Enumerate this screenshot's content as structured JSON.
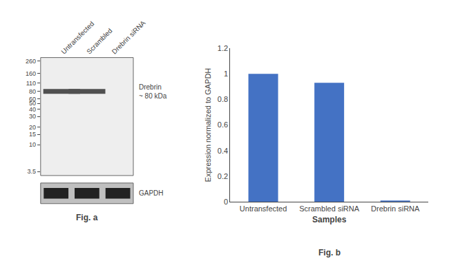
{
  "chart_data": [
    {
      "type": "blot",
      "categories": [
        "Untransfected",
        "Scrambled",
        "Drebrin siRNA"
      ],
      "log": "y",
      "ylim": [
        3,
        300
      ],
      "yticks": [
        260,
        160,
        110,
        80,
        60,
        50,
        40,
        30,
        20,
        15,
        10,
        3.5
      ],
      "series": [
        {
          "name": "Drebrin\n~ 80 kDa",
          "color": "#505050",
          "values": [
            80,
            80,
            null
          ]
        }
      ],
      "annotations": [
        "GAPDH",
        "Fig. a"
      ],
      "grid": false
    },
    {
      "type": "bar",
      "categories": [
        "Untransfected",
        "Scrambled siRNA",
        "Drebrin siRNA"
      ],
      "values": [
        1.0,
        0.93,
        0.01
      ],
      "color": "#4472C4",
      "ylim": [
        0,
        1.2
      ],
      "yticks": [
        0,
        0.2,
        0.4,
        0.6,
        0.8,
        1.0,
        1.2
      ],
      "xlabel": "Samples",
      "ylabel": "Expression normalized to GAPDH",
      "annotations": [
        "Fig. b"
      ],
      "grid": false
    }
  ]
}
